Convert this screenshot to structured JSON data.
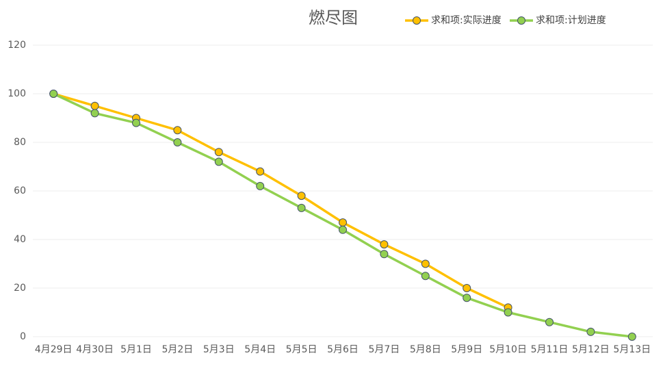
{
  "chart_data": {
    "type": "line",
    "title": "燃尽图",
    "categories": [
      "4月29日",
      "4月30日",
      "5月1日",
      "5月2日",
      "5月3日",
      "5月4日",
      "5月5日",
      "5月6日",
      "5月7日",
      "5月8日",
      "5月9日",
      "5月10日",
      "5月11日",
      "5月12日",
      "5月13日"
    ],
    "series": [
      {
        "name": "求和项:实际进度",
        "color": "#ffc000",
        "values": [
          100,
          95,
          90,
          85,
          76,
          68,
          58,
          47,
          38,
          30,
          20,
          12,
          null,
          null,
          null
        ]
      },
      {
        "name": "求和项:计划进度",
        "color": "#92d050",
        "values": [
          100,
          92,
          88,
          80,
          72,
          62,
          53,
          44,
          34,
          25,
          16,
          10,
          6,
          2,
          0
        ]
      }
    ],
    "ylim": [
      0,
      120
    ],
    "yticks": [
      0,
      20,
      40,
      60,
      80,
      100,
      120
    ],
    "grid": true,
    "legend": "top-right"
  }
}
